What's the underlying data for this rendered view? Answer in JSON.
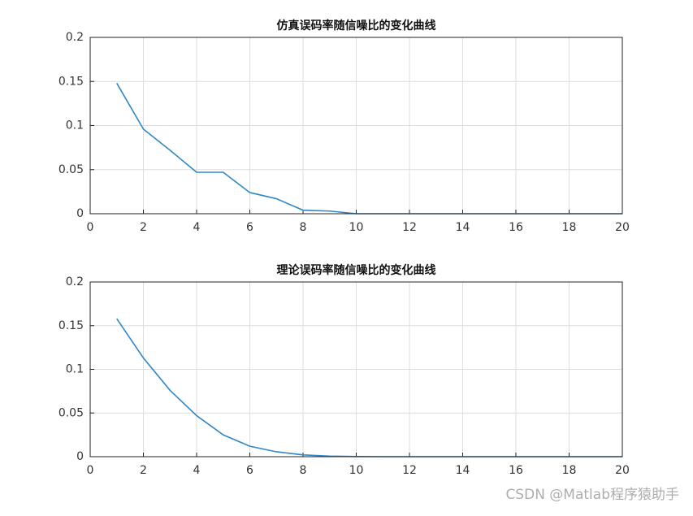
{
  "chart_data": [
    {
      "type": "line",
      "title": "仿真误码率随信噪比的变化曲线",
      "x": [
        1,
        2,
        3,
        4,
        5,
        6,
        7,
        8,
        9,
        10,
        11,
        12,
        13,
        14,
        15,
        16,
        17,
        18,
        19,
        20
      ],
      "series": [
        {
          "color": "#2f87c8",
          "values": [
            0.148,
            0.096,
            0.072,
            0.047,
            0.047,
            0.024,
            0.017,
            0.004,
            0.003,
            0,
            0,
            0,
            0,
            0,
            0,
            0,
            0,
            0,
            0,
            0
          ]
        }
      ],
      "xlim": [
        0,
        20
      ],
      "xticks": [
        0,
        2,
        4,
        6,
        8,
        10,
        12,
        14,
        16,
        18,
        20
      ],
      "ylim": [
        0,
        0.2
      ],
      "yticks": [
        0,
        0.05,
        0.1,
        0.15,
        0.2
      ],
      "grid": true
    },
    {
      "type": "line",
      "title": "理论误码率随信噪比的变化曲线",
      "x": [
        1,
        2,
        3,
        4,
        5,
        6,
        7,
        8,
        9,
        10,
        11,
        12,
        13,
        14,
        15,
        16,
        17,
        18,
        19,
        20
      ],
      "series": [
        {
          "color": "#2f87c8",
          "values": [
            0.158,
            0.113,
            0.076,
            0.047,
            0.025,
            0.012,
            0.0056,
            0.002,
            0.0007,
            0.0002,
            0,
            0,
            0,
            0,
            0,
            0,
            0,
            0,
            0,
            0
          ]
        }
      ],
      "xlim": [
        0,
        20
      ],
      "xticks": [
        0,
        2,
        4,
        6,
        8,
        10,
        12,
        14,
        16,
        18,
        20
      ],
      "ylim": [
        0,
        0.2
      ],
      "yticks": [
        0,
        0.05,
        0.1,
        0.15,
        0.2
      ],
      "grid": true
    }
  ],
  "watermark": "CSDN @Matlab程序猿助手"
}
